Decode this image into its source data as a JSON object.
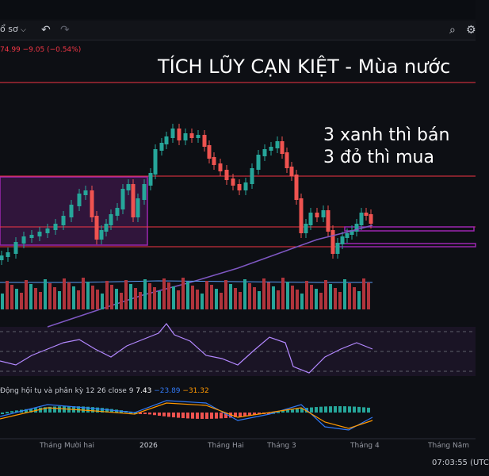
{
  "toolbar": {
    "profile_label": "ổ sơ",
    "dropdown_icon": "chevron-down-icon",
    "undo_icon": "undo-icon",
    "redo_icon": "redo-icon",
    "search_icon": "search-icon",
    "settings_icon": "gear-icon"
  },
  "quote": {
    "text": "74.99 −9.05 (−0.54%)",
    "color": "#f23645"
  },
  "annotations": {
    "headline": "TÍCH LŨY CẠN KIỆT - Mùa nước",
    "note_line1": "3 xanh thì bán",
    "note_line2": "3 đỏ thì mua"
  },
  "macd": {
    "label": "Động hội tụ và phân kỳ 12 26 close 9",
    "hist": "7.43",
    "macd": "−23.89",
    "signal": "−31.32"
  },
  "time_axis": {
    "labels": [
      "Tháng Mười hai",
      "2026",
      "Tháng Hai",
      "Tháng 3",
      "Tháng 4",
      "Tháng Năm"
    ]
  },
  "clock": "07:03:55 (UTC",
  "colors": {
    "up": "#26a69a",
    "down": "#ef5350",
    "zone": "#9c27b0",
    "hline": "#f23645",
    "ma": "#7e57c2"
  }
}
